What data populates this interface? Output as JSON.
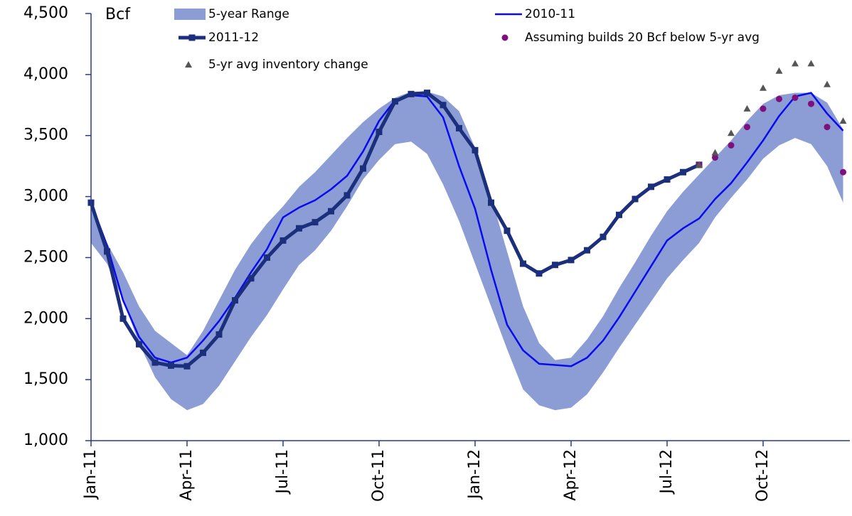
{
  "chart_data": {
    "type": "line",
    "y_axis_label": "Bcf",
    "categories": [
      "Jan-11",
      null,
      null,
      null,
      null,
      null,
      "Apr-11",
      null,
      null,
      null,
      null,
      null,
      "Jul-11",
      null,
      null,
      null,
      null,
      null,
      "Oct-11",
      null,
      null,
      null,
      null,
      null,
      "Jan-12",
      null,
      null,
      null,
      null,
      null,
      "Apr-12",
      null,
      null,
      null,
      null,
      null,
      "Jul-12",
      null,
      null,
      null,
      null,
      null,
      "Oct-12",
      null,
      null,
      null,
      null,
      null
    ],
    "ylim": [
      1000,
      4500
    ],
    "yticks": [
      {
        "value": 1000,
        "label": "1,000"
      },
      {
        "value": 1500,
        "label": "1,500"
      },
      {
        "value": 2000,
        "label": "2,000"
      },
      {
        "value": 2500,
        "label": "2,500"
      },
      {
        "value": 3000,
        "label": "3,000"
      },
      {
        "value": 3500,
        "label": "3,500"
      },
      {
        "value": 4000,
        "label": "4,000"
      },
      {
        "value": 4500,
        "label": "4,500"
      }
    ],
    "series": [
      {
        "name": "5-year Range",
        "kind": "band",
        "color": "#8b9dd4",
        "low": [
          2620,
          2450,
          2150,
          1800,
          1520,
          1340,
          1250,
          1300,
          1450,
          1650,
          1850,
          2030,
          2240,
          2440,
          2560,
          2720,
          2920,
          3140,
          3300,
          3430,
          3450,
          3350,
          3100,
          2800,
          2450,
          2100,
          1750,
          1420,
          1290,
          1250,
          1270,
          1380,
          1560,
          1760,
          1950,
          2140,
          2330,
          2480,
          2620,
          2830,
          2990,
          3140,
          3310,
          3420,
          3480,
          3430,
          3250,
          2950
        ],
        "high": [
          2960,
          2620,
          2380,
          2100,
          1900,
          1800,
          1700,
          1900,
          2150,
          2400,
          2610,
          2780,
          2920,
          3080,
          3200,
          3340,
          3480,
          3610,
          3720,
          3810,
          3860,
          3860,
          3820,
          3700,
          3400,
          3000,
          2550,
          2100,
          1800,
          1660,
          1680,
          1830,
          2020,
          2250,
          2460,
          2680,
          2880,
          3040,
          3180,
          3320,
          3460,
          3620,
          3760,
          3830,
          3850,
          3850,
          3770,
          3550
        ]
      },
      {
        "name": "2010-11",
        "kind": "line",
        "color": "#0a0af0",
        "values": [
          2950,
          2600,
          2150,
          1850,
          1680,
          1640,
          1680,
          1820,
          1980,
          2170,
          2380,
          2570,
          2830,
          2910,
          2970,
          3060,
          3170,
          3370,
          3620,
          3790,
          3830,
          3820,
          3650,
          3250,
          2900,
          2400,
          1950,
          1740,
          1630,
          1620,
          1610,
          1680,
          1820,
          2010,
          2220,
          2430,
          2640,
          2740,
          2820,
          2980,
          3110,
          3280,
          3460,
          3660,
          3820,
          3850,
          3680,
          3540
        ]
      },
      {
        "name": "2011-12",
        "kind": "line",
        "marker": "square",
        "color": "#1c2f7c",
        "values": [
          2950,
          2550,
          2000,
          1790,
          1640,
          1615,
          1610,
          1720,
          1870,
          2150,
          2330,
          2500,
          2640,
          2740,
          2790,
          2880,
          3010,
          3230,
          3530,
          3780,
          3840,
          3850,
          3750,
          3560,
          3380,
          2950,
          2720,
          2450,
          2370,
          2440,
          2480,
          2560,
          2670,
          2850,
          2980,
          3080,
          3140,
          3200,
          3260,
          null,
          null,
          null,
          null,
          null,
          null,
          null,
          null,
          null
        ]
      },
      {
        "name": "Assuming builds 20 Bcf below 5-yr avg",
        "kind": "markers",
        "marker": "circle",
        "color": "#7f0f7e",
        "values": [
          null,
          null,
          null,
          null,
          null,
          null,
          null,
          null,
          null,
          null,
          null,
          null,
          null,
          null,
          null,
          null,
          null,
          null,
          null,
          null,
          null,
          null,
          null,
          null,
          null,
          null,
          null,
          null,
          null,
          null,
          null,
          null,
          null,
          null,
          null,
          null,
          null,
          null,
          3260,
          3320,
          3420,
          3570,
          3720,
          3800,
          3810,
          3760,
          3570,
          3200
        ]
      },
      {
        "name": "5-yr avg inventory change",
        "kind": "markers",
        "marker": "triangle",
        "color": "#555555",
        "values": [
          null,
          null,
          null,
          null,
          null,
          null,
          null,
          null,
          null,
          null,
          null,
          null,
          null,
          null,
          null,
          null,
          null,
          null,
          null,
          null,
          null,
          null,
          null,
          null,
          null,
          null,
          null,
          null,
          null,
          null,
          null,
          null,
          null,
          null,
          null,
          null,
          null,
          null,
          3260,
          3360,
          3520,
          3720,
          3890,
          4030,
          4090,
          4090,
          3920,
          3620
        ]
      }
    ]
  }
}
